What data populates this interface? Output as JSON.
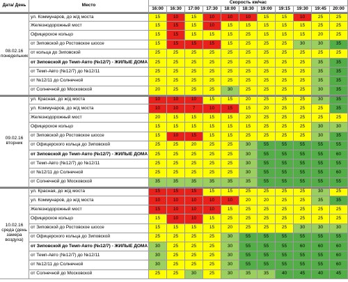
{
  "header": {
    "date_day": "Дата/ День",
    "place": "Место",
    "speed": "Скорость км/час",
    "times": [
      "16:00",
      "16:30",
      "17:00",
      "17:30",
      "18:00",
      "18:30",
      "19:00",
      "19:15",
      "19:30",
      "19:45",
      "20:00"
    ]
  },
  "colors": {
    "red": "#e8221b",
    "yellow": "#ffff00",
    "light_green": "#9bcf5f",
    "dark_green": "#54ae48"
  },
  "groups": [
    {
      "date": "08.02.16 понедельник",
      "rows": [
        {
          "place": "ул. Коммунаров, до ж/д моста",
          "bold": false,
          "values": [
            "15",
            "10",
            "15",
            "10",
            "10",
            "10",
            "15",
            "15",
            "10",
            "25",
            "25"
          ],
          "colors": [
            "y",
            "r",
            "y",
            "r",
            "r",
            "r",
            "y",
            "y",
            "r",
            "y",
            "y"
          ]
        },
        {
          "place": "Железнодорожный мост",
          "bold": false,
          "values": [
            "15",
            "15",
            "15",
            "10",
            "15",
            "15",
            "15",
            "15",
            "15",
            "25",
            "25"
          ],
          "colors": [
            "y",
            "r",
            "y",
            "r",
            "y",
            "y",
            "y",
            "y",
            "y",
            "y",
            "y"
          ]
        },
        {
          "place": "Офицерское кольцо",
          "bold": false,
          "values": [
            "15",
            "15",
            "15",
            "15",
            "15",
            "25",
            "15",
            "15",
            "15",
            "20",
            "25"
          ],
          "colors": [
            "y",
            "r",
            "y",
            "y",
            "y",
            "y",
            "y",
            "y",
            "y",
            "y",
            "y"
          ]
        },
        {
          "place": "от Зиповской до Ростовское шоссе",
          "bold": false,
          "values": [
            "15",
            "15",
            "15",
            "15",
            "15",
            "25",
            "25",
            "25",
            "30",
            "30",
            "35"
          ],
          "colors": [
            "y",
            "r",
            "r",
            "r",
            "y",
            "y",
            "y",
            "y",
            "lg",
            "lg",
            "dg"
          ]
        },
        {
          "place": "от кольца до Зиповской",
          "bold": false,
          "values": [
            "25",
            "25",
            "25",
            "25",
            "25",
            "25",
            "25",
            "25",
            "25",
            "25",
            "25"
          ],
          "colors": [
            "y",
            "y",
            "y",
            "y",
            "y",
            "y",
            "y",
            "y",
            "y",
            "y",
            "y"
          ]
        },
        {
          "place": "от Зиповской до Темп-Авто (№12/7) - ЖИЛЫЕ ДОМА",
          "bold": true,
          "values": [
            "25",
            "25",
            "25",
            "25",
            "25",
            "25",
            "25",
            "25",
            "25",
            "35",
            "35"
          ],
          "colors": [
            "y",
            "y",
            "y",
            "y",
            "y",
            "y",
            "y",
            "y",
            "y",
            "lg",
            "dg"
          ]
        },
        {
          "place": "от Темп-Авто (№12/7) до №12/11",
          "bold": false,
          "values": [
            "25",
            "25",
            "25",
            "25",
            "25",
            "25",
            "25",
            "25",
            "25",
            "35",
            "35"
          ],
          "colors": [
            "y",
            "y",
            "y",
            "y",
            "y",
            "y",
            "y",
            "y",
            "y",
            "lg",
            "dg"
          ]
        },
        {
          "place": "от №12/11 до Солнечной",
          "bold": false,
          "values": [
            "25",
            "25",
            "25",
            "25",
            "25",
            "25",
            "25",
            "25",
            "25",
            "35",
            "35"
          ],
          "colors": [
            "y",
            "y",
            "y",
            "y",
            "y",
            "y",
            "y",
            "y",
            "y",
            "lg",
            "dg"
          ]
        },
        {
          "place": "от Солнечной до Московской",
          "bold": false,
          "values": [
            "20",
            "25",
            "25",
            "25",
            "30",
            "25",
            "25",
            "25",
            "25",
            "30",
            "35"
          ],
          "colors": [
            "y",
            "y",
            "y",
            "y",
            "lg",
            "y",
            "y",
            "y",
            "y",
            "lg",
            "dg"
          ]
        }
      ]
    },
    {
      "date": "09.02.16 вторник",
      "rows": [
        {
          "place": "ул. Красная, до ж/д моста",
          "bold": false,
          "values": [
            "10",
            "10",
            "10",
            "15",
            "15",
            "20",
            "25",
            "25",
            "25",
            "30",
            "35"
          ],
          "colors": [
            "r",
            "r",
            "r",
            "y",
            "y",
            "y",
            "y",
            "y",
            "y",
            "lg",
            "dg"
          ]
        },
        {
          "place": "ул. Коммунаров, до ж/д моста",
          "bold": false,
          "values": [
            "10",
            "10",
            "7",
            "10",
            "15",
            "15",
            "20",
            "25",
            "25",
            "25",
            "35"
          ],
          "colors": [
            "r",
            "r",
            "r",
            "r",
            "r",
            "y",
            "y",
            "y",
            "y",
            "y",
            "dg"
          ]
        },
        {
          "place": "Железнодорожный мост",
          "bold": false,
          "values": [
            "20",
            "15",
            "15",
            "15",
            "15",
            "20",
            "25",
            "25",
            "25",
            "25",
            "25"
          ],
          "colors": [
            "y",
            "y",
            "y",
            "y",
            "y",
            "y",
            "y",
            "y",
            "y",
            "y",
            "y"
          ]
        },
        {
          "place": "Офицерское кольцо",
          "bold": false,
          "values": [
            "15",
            "15",
            "15",
            "15",
            "15",
            "15",
            "25",
            "25",
            "25",
            "30",
            "30"
          ],
          "colors": [
            "y",
            "y",
            "y",
            "y",
            "y",
            "y",
            "y",
            "y",
            "y",
            "lg",
            "lg"
          ]
        },
        {
          "place": "от Зиповской до Ростовское шоссе",
          "bold": false,
          "values": [
            "15",
            "10",
            "15",
            "15",
            "15",
            "25",
            "25",
            "25",
            "25",
            "30",
            "35"
          ],
          "colors": [
            "y",
            "r",
            "r",
            "y",
            "y",
            "y",
            "y",
            "y",
            "y",
            "lg",
            "dg"
          ]
        },
        {
          "place": "от Офицерского кольца до Зиповской",
          "bold": false,
          "values": [
            "25",
            "25",
            "20",
            "25",
            "25",
            "30",
            "55",
            "55",
            "55",
            "55",
            "55"
          ],
          "colors": [
            "y",
            "y",
            "y",
            "y",
            "y",
            "lg",
            "dg",
            "dg",
            "dg",
            "dg",
            "dg"
          ]
        },
        {
          "place": "от Зиповской до Темп-Авто (№12/7) - ЖИЛЫЕ ДОМА",
          "bold": true,
          "values": [
            "25",
            "25",
            "25",
            "25",
            "25",
            "30",
            "55",
            "55",
            "55",
            "55",
            "60"
          ],
          "colors": [
            "y",
            "y",
            "y",
            "y",
            "y",
            "lg",
            "dg",
            "dg",
            "dg",
            "dg",
            "dg"
          ]
        },
        {
          "place": "от Темп-Авто (№12/7) до №12/11",
          "bold": false,
          "values": [
            "25",
            "25",
            "25",
            "25",
            "25",
            "30",
            "55",
            "55",
            "55",
            "55",
            "55"
          ],
          "colors": [
            "y",
            "y",
            "y",
            "y",
            "y",
            "lg",
            "dg",
            "dg",
            "dg",
            "dg",
            "dg"
          ]
        },
        {
          "place": "от №12/11 до Солнечной",
          "bold": false,
          "values": [
            "25",
            "25",
            "25",
            "25",
            "25",
            "30",
            "55",
            "55",
            "55",
            "55",
            "60"
          ],
          "colors": [
            "y",
            "y",
            "y",
            "y",
            "y",
            "lg",
            "dg",
            "dg",
            "dg",
            "dg",
            "dg"
          ]
        },
        {
          "place": "от Солнечной до Московской",
          "bold": false,
          "values": [
            "35",
            "35",
            "35",
            "35",
            "35",
            "35",
            "55",
            "55",
            "55",
            "55",
            "55"
          ],
          "colors": [
            "lg",
            "lg",
            "lg",
            "lg",
            "lg",
            "lg",
            "dg",
            "dg",
            "dg",
            "dg",
            "dg"
          ]
        }
      ]
    },
    {
      "date": "10.02.16 среда (день замера воздуха)",
      "rows": [
        {
          "place": "ул. Красная, до ж/д моста",
          "bold": false,
          "values": [
            "15",
            "15",
            "15",
            "15",
            "15",
            "25",
            "25",
            "25",
            "25",
            "30",
            "25"
          ],
          "colors": [
            "r",
            "r",
            "r",
            "y",
            "y",
            "y",
            "y",
            "y",
            "y",
            "lg",
            "y"
          ]
        },
        {
          "place": "ул. Коммунаров, до ж/д моста",
          "bold": false,
          "values": [
            "10",
            "10",
            "10",
            "10",
            "10",
            "20",
            "20",
            "25",
            "25",
            "35",
            "35"
          ],
          "colors": [
            "r",
            "r",
            "r",
            "r",
            "r",
            "y",
            "y",
            "y",
            "y",
            "lg",
            "dg"
          ]
        },
        {
          "place": "Железнодорожный мост",
          "bold": false,
          "values": [
            "15",
            "10",
            "10",
            "10",
            "15",
            "25",
            "25",
            "25",
            "25",
            "25",
            "25"
          ],
          "colors": [
            "r",
            "r",
            "r",
            "r",
            "y",
            "y",
            "y",
            "y",
            "y",
            "y",
            "y"
          ]
        },
        {
          "place": "Офицерское кольцо",
          "bold": false,
          "values": [
            "15",
            "10",
            "10",
            "15",
            "25",
            "25",
            "25",
            "25",
            "25",
            "25",
            "25"
          ],
          "colors": [
            "y",
            "r",
            "r",
            "y",
            "y",
            "y",
            "y",
            "y",
            "y",
            "y",
            "y"
          ]
        },
        {
          "place": "от Зиповской до Ростовское шоссе",
          "bold": false,
          "values": [
            "15",
            "15",
            "15",
            "15",
            "20",
            "25",
            "25",
            "25",
            "30",
            "30",
            "30"
          ],
          "colors": [
            "y",
            "y",
            "y",
            "y",
            "y",
            "y",
            "y",
            "y",
            "lg",
            "lg",
            "lg"
          ]
        },
        {
          "place": "от Офицерского кольца до Зиповской",
          "bold": false,
          "values": [
            "25",
            "25",
            "25",
            "25",
            "30",
            "55",
            "55",
            "55",
            "55",
            "55",
            "55"
          ],
          "colors": [
            "y",
            "y",
            "y",
            "y",
            "lg",
            "dg",
            "dg",
            "dg",
            "dg",
            "dg",
            "dg"
          ]
        },
        {
          "place": "от Зиповской до Темп-Авто (№12/7) - ЖИЛЫЕ ДОМА",
          "bold": true,
          "values": [
            "30",
            "25",
            "25",
            "25",
            "30",
            "55",
            "55",
            "55",
            "60",
            "60",
            "60"
          ],
          "colors": [
            "lg",
            "y",
            "y",
            "y",
            "lg",
            "dg",
            "dg",
            "dg",
            "dg",
            "dg",
            "dg"
          ]
        },
        {
          "place": "от Темп-Авто (№12/7) до №12/11",
          "bold": false,
          "values": [
            "30",
            "25",
            "25",
            "25",
            "30",
            "55",
            "55",
            "55",
            "55",
            "55",
            "60"
          ],
          "colors": [
            "lg",
            "y",
            "y",
            "y",
            "lg",
            "dg",
            "dg",
            "dg",
            "dg",
            "dg",
            "dg"
          ]
        },
        {
          "place": "от №12/11 до Солнечной",
          "bold": false,
          "values": [
            "30",
            "25",
            "25",
            "25",
            "30",
            "55",
            "55",
            "55",
            "55",
            "55",
            "60"
          ],
          "colors": [
            "lg",
            "y",
            "y",
            "y",
            "lg",
            "dg",
            "dg",
            "dg",
            "dg",
            "dg",
            "dg"
          ]
        },
        {
          "place": "от Солнечной до Московской",
          "bold": false,
          "values": [
            "25",
            "25",
            "30",
            "25",
            "30",
            "35",
            "35",
            "40",
            "45",
            "40",
            "45"
          ],
          "colors": [
            "y",
            "y",
            "lg",
            "y",
            "lg",
            "lg",
            "lg",
            "dg",
            "dg",
            "dg",
            "dg"
          ]
        }
      ]
    }
  ]
}
